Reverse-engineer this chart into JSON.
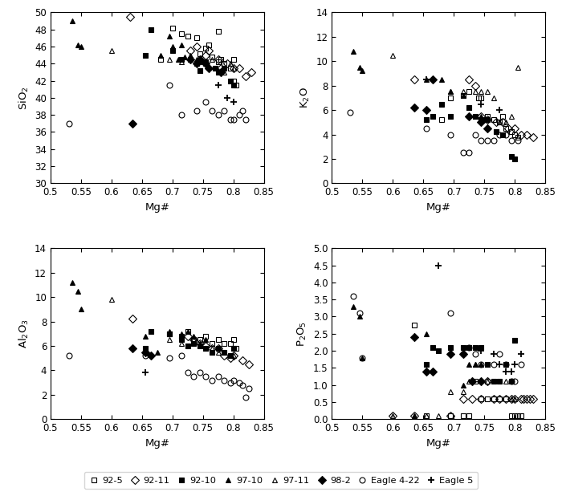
{
  "xlim": [
    0.5,
    0.85
  ],
  "xlabel": "Mg#",
  "xticks": [
    0.5,
    0.55,
    0.6,
    0.65,
    0.7,
    0.75,
    0.8,
    0.85
  ],
  "xticklabels": [
    "0.5",
    "0.55",
    "0.6",
    "0.65",
    "0.7",
    "0.75",
    "0.8",
    "0.85"
  ],
  "panels": [
    {
      "ylabel": "SiO$_2$",
      "ylim": [
        30,
        50
      ],
      "yticks": [
        30,
        32,
        34,
        36,
        38,
        40,
        42,
        44,
        46,
        48,
        50
      ],
      "series": {
        "92-5": {
          "x": [
            0.68,
            0.7,
            0.715,
            0.725,
            0.74,
            0.745,
            0.755,
            0.76,
            0.765,
            0.775,
            0.775,
            0.78,
            0.785,
            0.795,
            0.8,
            0.8,
            0.805
          ],
          "y": [
            44.5,
            48.2,
            47.5,
            47.2,
            47.0,
            45.2,
            45.8,
            46.2,
            44.8,
            47.8,
            44.2,
            44.5,
            44.0,
            43.5,
            44.5,
            42.0,
            41.5
          ]
        },
        "92-11": {
          "x": [
            0.63,
            0.73,
            0.74,
            0.755,
            0.76,
            0.775,
            0.78,
            0.79,
            0.8,
            0.81,
            0.82,
            0.83
          ],
          "y": [
            49.5,
            45.5,
            46.0,
            45.0,
            45.5,
            44.5,
            43.5,
            44.0,
            43.5,
            43.5,
            42.5,
            43.0
          ]
        },
        "92-10": {
          "x": [
            0.655,
            0.665,
            0.7,
            0.715,
            0.73,
            0.74,
            0.745,
            0.755,
            0.77,
            0.775,
            0.785,
            0.795,
            0.8
          ],
          "y": [
            45.0,
            48.0,
            45.5,
            44.5,
            44.5,
            44.0,
            43.2,
            44.2,
            43.5,
            43.0,
            43.5,
            42.0,
            41.5
          ]
        },
        "97-10": {
          "x": [
            0.535,
            0.545,
            0.55,
            0.68,
            0.695,
            0.7,
            0.71,
            0.715,
            0.72,
            0.73,
            0.745,
            0.75
          ],
          "y": [
            49.0,
            46.2,
            46.0,
            45.0,
            47.2,
            46.0,
            44.5,
            46.2,
            44.8,
            45.0,
            44.5,
            44.2
          ]
        },
        "97-11": {
          "x": [
            0.6,
            0.695,
            0.715,
            0.74,
            0.755,
            0.765,
            0.775,
            0.785,
            0.795,
            0.8
          ],
          "y": [
            45.5,
            44.5,
            44.2,
            44.5,
            44.0,
            44.5,
            43.2,
            43.0,
            44.0,
            43.5
          ]
        },
        "98-2": {
          "x": [
            0.635,
            0.73,
            0.74,
            0.745,
            0.755,
            0.76,
            0.78
          ],
          "y": [
            37.0,
            44.5,
            44.0,
            44.5,
            44.0,
            43.5,
            43.0
          ]
        },
        "Eagle4-22": {
          "x": [
            0.53,
            0.695,
            0.715,
            0.74,
            0.755,
            0.765,
            0.775,
            0.785,
            0.795,
            0.8,
            0.81,
            0.815,
            0.82
          ],
          "y": [
            37.0,
            41.5,
            38.0,
            38.5,
            39.5,
            38.5,
            38.0,
            38.5,
            37.5,
            37.5,
            38.0,
            38.5,
            37.5
          ]
        },
        "Eagle5": {
          "x": [
            0.775,
            0.79,
            0.8
          ],
          "y": [
            41.5,
            40.0,
            39.5
          ]
        }
      }
    },
    {
      "ylabel": "K$_2$O",
      "ylim": [
        0,
        14
      ],
      "yticks": [
        0,
        2,
        4,
        6,
        8,
        10,
        12,
        14
      ],
      "series": {
        "92-5": {
          "x": [
            0.68,
            0.695,
            0.715,
            0.725,
            0.74,
            0.745,
            0.755,
            0.765,
            0.775,
            0.78,
            0.785,
            0.795,
            0.8,
            0.805
          ],
          "y": [
            5.2,
            7.0,
            7.2,
            7.5,
            7.0,
            7.0,
            5.5,
            5.2,
            5.0,
            5.5,
            4.5,
            4.2,
            4.0,
            3.8
          ]
        },
        "92-11": {
          "x": [
            0.635,
            0.725,
            0.735,
            0.745,
            0.755,
            0.77,
            0.78,
            0.79,
            0.8,
            0.81,
            0.82,
            0.83
          ],
          "y": [
            8.5,
            8.5,
            8.0,
            5.5,
            5.2,
            5.0,
            5.0,
            4.5,
            4.5,
            4.0,
            4.0,
            3.8
          ]
        },
        "92-10": {
          "x": [
            0.655,
            0.665,
            0.68,
            0.695,
            0.725,
            0.735,
            0.745,
            0.755,
            0.77,
            0.78,
            0.795,
            0.8
          ],
          "y": [
            5.2,
            5.5,
            6.5,
            5.5,
            6.2,
            5.5,
            5.2,
            5.2,
            4.2,
            4.0,
            2.2,
            2.0
          ]
        },
        "97-10": {
          "x": [
            0.535,
            0.545,
            0.55,
            0.655,
            0.68,
            0.695,
            0.715,
            0.725,
            0.735,
            0.745,
            0.75
          ],
          "y": [
            10.8,
            9.5,
            9.2,
            8.5,
            8.5,
            7.5,
            7.2,
            6.2,
            5.5,
            5.5,
            5.2
          ]
        },
        "97-11": {
          "x": [
            0.6,
            0.695,
            0.715,
            0.735,
            0.745,
            0.755,
            0.765,
            0.775,
            0.785,
            0.795,
            0.805
          ],
          "y": [
            10.5,
            7.5,
            7.5,
            7.5,
            7.5,
            7.5,
            7.0,
            5.0,
            5.0,
            5.5,
            9.5
          ]
        },
        "98-2": {
          "x": [
            0.635,
            0.655,
            0.665,
            0.725,
            0.745,
            0.755
          ],
          "y": [
            6.2,
            6.0,
            8.5,
            5.5,
            5.0,
            4.5
          ]
        },
        "Eagle4-22": {
          "x": [
            0.53,
            0.655,
            0.695,
            0.715,
            0.725,
            0.735,
            0.745,
            0.755,
            0.765,
            0.775,
            0.785,
            0.795,
            0.805
          ],
          "y": [
            5.8,
            4.5,
            4.0,
            2.5,
            2.5,
            4.0,
            3.5,
            3.5,
            3.5,
            4.0,
            4.0,
            3.5,
            3.5
          ]
        },
        "Eagle5": {
          "x": [
            0.655,
            0.745,
            0.775
          ],
          "y": [
            8.5,
            6.5,
            6.0
          ]
        }
      }
    },
    {
      "ylabel": "Al$_2$O$_3$",
      "ylim": [
        0,
        14
      ],
      "yticks": [
        0,
        2,
        4,
        6,
        8,
        10,
        12,
        14
      ],
      "series": {
        "92-5": {
          "x": [
            0.695,
            0.715,
            0.725,
            0.735,
            0.745,
            0.755,
            0.765,
            0.775,
            0.785,
            0.795,
            0.8,
            0.805
          ],
          "y": [
            7.0,
            6.8,
            7.2,
            6.5,
            6.5,
            6.8,
            6.2,
            6.5,
            6.2,
            6.2,
            6.5,
            5.8
          ]
        },
        "92-11": {
          "x": [
            0.635,
            0.725,
            0.735,
            0.745,
            0.755,
            0.765,
            0.775,
            0.785,
            0.795,
            0.8,
            0.815,
            0.825
          ],
          "y": [
            8.2,
            6.8,
            6.5,
            6.2,
            6.0,
            5.8,
            5.8,
            5.2,
            5.0,
            5.2,
            4.8,
            4.5
          ]
        },
        "92-10": {
          "x": [
            0.655,
            0.665,
            0.695,
            0.715,
            0.725,
            0.735,
            0.745,
            0.755,
            0.765,
            0.775,
            0.785,
            0.795,
            0.8
          ],
          "y": [
            5.8,
            7.2,
            7.0,
            6.5,
            6.0,
            6.2,
            6.0,
            5.8,
            5.5,
            5.8,
            5.5,
            5.2,
            5.8
          ]
        },
        "97-10": {
          "x": [
            0.535,
            0.545,
            0.55,
            0.655,
            0.675,
            0.695,
            0.715,
            0.725,
            0.735,
            0.745,
            0.755
          ],
          "y": [
            11.2,
            10.5,
            9.0,
            6.8,
            5.5,
            7.2,
            7.0,
            7.2,
            6.8,
            6.2,
            6.5
          ]
        },
        "97-11": {
          "x": [
            0.6,
            0.695,
            0.715,
            0.735,
            0.745,
            0.755,
            0.765,
            0.775,
            0.785,
            0.795,
            0.8
          ],
          "y": [
            9.8,
            6.5,
            6.2,
            6.5,
            6.2,
            5.8,
            5.8,
            5.5,
            5.5,
            5.2,
            5.2
          ]
        },
        "98-2": {
          "x": [
            0.635,
            0.655,
            0.665
          ],
          "y": [
            5.8,
            5.5,
            5.2
          ]
        },
        "Eagle4-22": {
          "x": [
            0.53,
            0.655,
            0.695,
            0.715,
            0.725,
            0.735,
            0.745,
            0.755,
            0.765,
            0.775,
            0.785,
            0.795,
            0.8,
            0.81,
            0.815,
            0.82,
            0.825
          ],
          "y": [
            5.2,
            5.2,
            5.0,
            5.2,
            3.8,
            3.5,
            3.8,
            3.5,
            3.2,
            3.5,
            3.2,
            3.0,
            3.2,
            3.0,
            2.8,
            1.8,
            2.5
          ]
        },
        "Eagle5": {
          "x": [
            0.655
          ],
          "y": [
            3.8
          ]
        }
      }
    },
    {
      "ylabel": "P$_2$O$_5$",
      "ylim": [
        0,
        5
      ],
      "yticks": [
        0,
        0.5,
        1.0,
        1.5,
        2.0,
        2.5,
        3.0,
        3.5,
        4.0,
        4.5,
        5.0
      ],
      "series": {
        "92-5": {
          "x": [
            0.635,
            0.655,
            0.695,
            0.715,
            0.725,
            0.735,
            0.745,
            0.755,
            0.765,
            0.775,
            0.785,
            0.795,
            0.8,
            0.805,
            0.81
          ],
          "y": [
            2.75,
            0.1,
            0.1,
            0.1,
            0.1,
            1.1,
            0.6,
            0.6,
            0.6,
            0.6,
            0.6,
            0.1,
            0.1,
            0.1,
            0.1
          ]
        },
        "92-11": {
          "x": [
            0.6,
            0.635,
            0.695,
            0.715,
            0.73,
            0.745,
            0.755,
            0.765,
            0.775,
            0.785,
            0.795,
            0.8,
            0.81,
            0.815,
            0.82,
            0.825,
            0.83
          ],
          "y": [
            0.1,
            0.1,
            0.1,
            0.6,
            0.6,
            0.6,
            1.1,
            0.6,
            0.6,
            0.6,
            0.6,
            0.6,
            0.6,
            0.6,
            0.6,
            0.6,
            0.6
          ]
        },
        "92-10": {
          "x": [
            0.655,
            0.665,
            0.675,
            0.695,
            0.715,
            0.725,
            0.735,
            0.745,
            0.755,
            0.765,
            0.775,
            0.785,
            0.795,
            0.8
          ],
          "y": [
            1.6,
            2.1,
            2.0,
            2.1,
            2.1,
            2.1,
            2.1,
            2.1,
            1.6,
            1.1,
            1.1,
            1.6,
            1.1,
            2.3
          ]
        },
        "97-10": {
          "x": [
            0.535,
            0.545,
            0.55,
            0.635,
            0.655,
            0.665,
            0.695,
            0.715,
            0.725,
            0.735,
            0.745,
            0.755
          ],
          "y": [
            3.3,
            3.0,
            1.8,
            0.1,
            2.5,
            2.1,
            2.1,
            1.0,
            1.6,
            1.6,
            1.6,
            1.6
          ]
        },
        "97-11": {
          "x": [
            0.6,
            0.635,
            0.655,
            0.675,
            0.695,
            0.715,
            0.725,
            0.735,
            0.745,
            0.755,
            0.765,
            0.775,
            0.785,
            0.795,
            0.8
          ],
          "y": [
            0.1,
            0.1,
            0.1,
            0.1,
            0.8,
            0.8,
            1.1,
            1.6,
            1.6,
            1.1,
            1.1,
            1.1,
            1.1,
            0.6,
            0.6
          ]
        },
        "98-2": {
          "x": [
            0.635,
            0.655,
            0.665,
            0.695,
            0.715,
            0.73,
            0.745
          ],
          "y": [
            2.4,
            1.4,
            1.4,
            1.9,
            1.9,
            1.1,
            1.1
          ]
        },
        "Eagle4-22": {
          "x": [
            0.535,
            0.545,
            0.55,
            0.695,
            0.715,
            0.725,
            0.735,
            0.745,
            0.755,
            0.765,
            0.775,
            0.785,
            0.795,
            0.8,
            0.81
          ],
          "y": [
            3.6,
            3.1,
            1.8,
            3.1,
            1.9,
            2.1,
            1.9,
            1.6,
            1.1,
            1.6,
            1.9,
            1.6,
            1.1,
            1.1,
            1.6
          ]
        },
        "Eagle5": {
          "x": [
            0.675,
            0.745,
            0.765,
            0.775,
            0.785,
            0.795,
            0.8,
            0.81
          ],
          "y": [
            4.5,
            2.0,
            1.9,
            1.6,
            1.4,
            1.4,
            1.6,
            1.9
          ]
        }
      }
    }
  ],
  "legend_labels": [
    "92-5",
    "92-11",
    "92-10",
    "97-10",
    "97-11",
    "98-2",
    "Eagle 4-22",
    "Eagle 5"
  ],
  "legend_markers": [
    "s",
    "D",
    "s",
    "^",
    "^",
    "D",
    "o",
    "+"
  ],
  "legend_fills": [
    "none",
    "none",
    "black",
    "black",
    "none",
    "black",
    "none",
    "none"
  ]
}
